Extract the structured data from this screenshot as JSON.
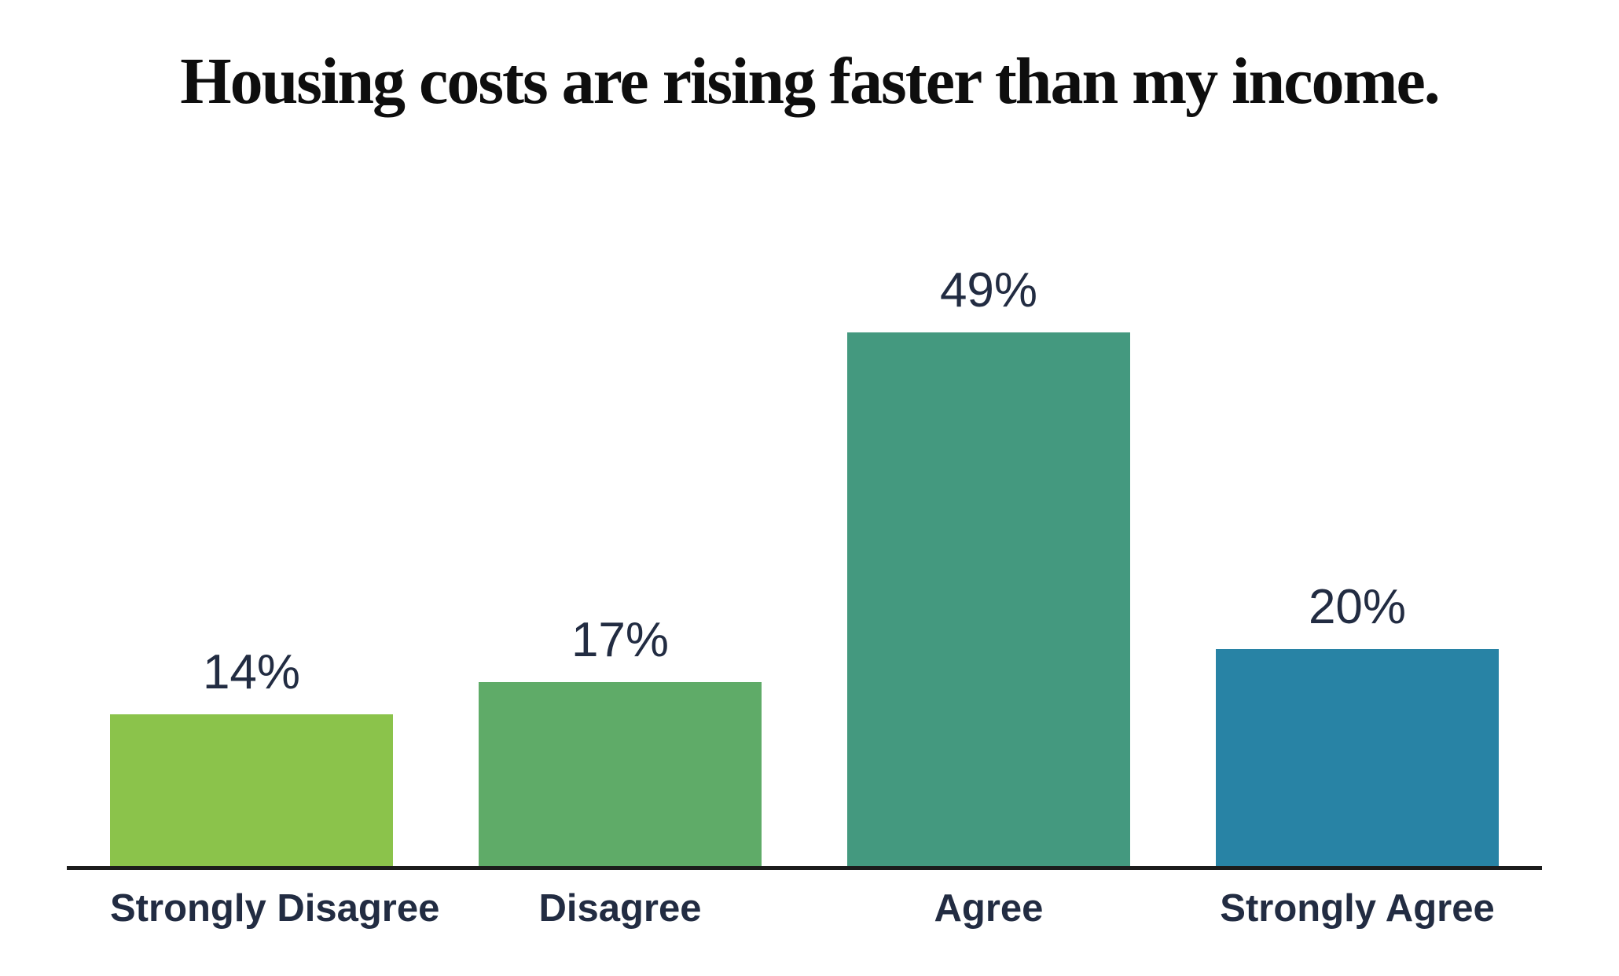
{
  "page": {
    "background_color": "#ffffff"
  },
  "chart_data": {
    "type": "bar",
    "title": "Housing costs are rising faster than my income.",
    "categories": [
      "Strongly Disagree",
      "Disagree",
      "Agree",
      "Strongly Agree"
    ],
    "values": [
      14,
      17,
      49,
      20
    ],
    "value_labels": [
      "14%",
      "17%",
      "49%",
      "20%"
    ],
    "value_unit": "%",
    "bar_colors": [
      "#8BC34B",
      "#5FAB68",
      "#44997F",
      "#2883A5"
    ],
    "title_color": "#0e0e0e",
    "label_color": "#222C42",
    "axis_line_color": "#1c1c1c",
    "xlabel": "",
    "ylabel": "",
    "grid": false,
    "legend": "none",
    "value_axis_visible": false,
    "data_label_position": "outside-end"
  }
}
